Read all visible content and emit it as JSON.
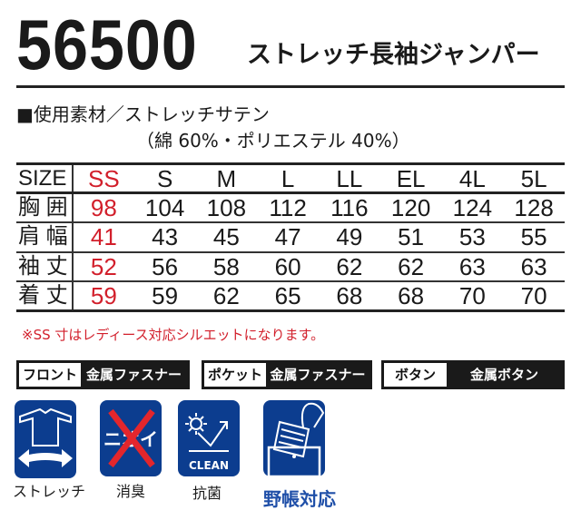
{
  "header": {
    "model": "56500",
    "title": "ストレッチ長袖ジャンパー"
  },
  "material": {
    "line1": "■使用素材／ストレッチサテン",
    "line2": "（綿 60%・ポリエステル 40%）"
  },
  "size_table": {
    "header": [
      "SIZE",
      "SS",
      "S",
      "M",
      "L",
      "LL",
      "EL",
      "4L",
      "5L"
    ],
    "rows": [
      {
        "label": "胸 囲",
        "values": [
          "98",
          "104",
          "108",
          "112",
          "116",
          "120",
          "124",
          "128"
        ]
      },
      {
        "label": "肩 幅",
        "values": [
          "41",
          "43",
          "45",
          "47",
          "49",
          "51",
          "53",
          "55"
        ]
      },
      {
        "label": "袖 丈",
        "values": [
          "52",
          "56",
          "58",
          "60",
          "62",
          "62",
          "63",
          "63"
        ]
      },
      {
        "label": "着 丈",
        "values": [
          "59",
          "59",
          "62",
          "65",
          "68",
          "68",
          "70",
          "70"
        ]
      }
    ]
  },
  "note": "※SS 寸はレディース対応シルエットになります。",
  "specs": [
    {
      "key": "フロント",
      "value": "金属ファスナー"
    },
    {
      "key": "ポケット",
      "value": "金属ファスナー"
    },
    {
      "key": "ボタン",
      "value": "金属ボタン"
    }
  ],
  "features": [
    {
      "icon": "stretch-icon",
      "label": "ストレッチ"
    },
    {
      "icon": "deodorant-icon",
      "label": "消臭",
      "icon_text": "ニオイ"
    },
    {
      "icon": "antibacterial-icon",
      "label": "抗菌",
      "icon_text": "CLEAN"
    },
    {
      "icon": "field-notebook-icon",
      "label": "野帳対応"
    }
  ],
  "colors": {
    "accent_red": "#d21f2b",
    "icon_blue": "#0c3d8f",
    "label_blue": "#1f4fa8"
  }
}
